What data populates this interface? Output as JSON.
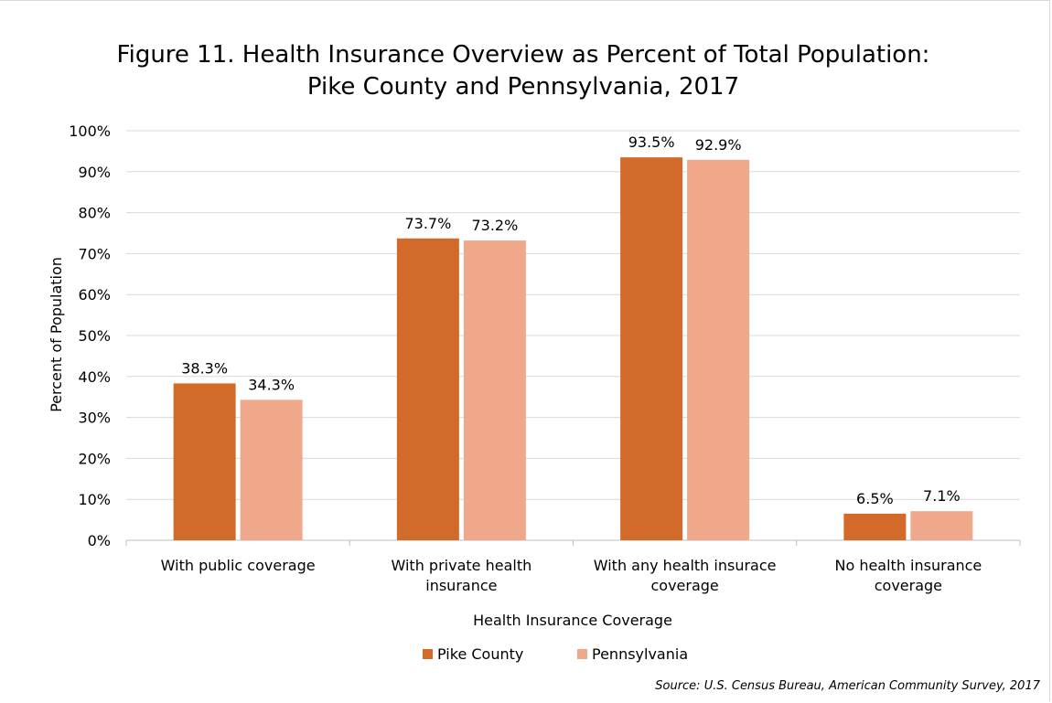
{
  "chart_data": {
    "type": "bar",
    "title": "Figure 11. Health Insurance Overview as Percent of Total Population:",
    "subtitle": "Pike County and Pennsylvania, 2017",
    "xlabel": "Health Insurance Coverage",
    "ylabel": "Percent of Population",
    "ylim": [
      0,
      100
    ],
    "y_ticks": [
      "0%",
      "10%",
      "20%",
      "30%",
      "40%",
      "50%",
      "60%",
      "70%",
      "80%",
      "90%",
      "100%"
    ],
    "grid": true,
    "legend_position": "bottom",
    "categories": [
      [
        "With public coverage"
      ],
      [
        "With private health",
        "insurance"
      ],
      [
        "With any health insurace",
        "coverage"
      ],
      [
        "No health insurance",
        "coverage"
      ]
    ],
    "series": [
      {
        "name": "Pike County",
        "color": "#D26B29",
        "values": [
          38.3,
          73.7,
          93.5,
          6.5
        ],
        "labels": [
          "38.3%",
          "73.7%",
          "93.5%",
          "6.5%"
        ]
      },
      {
        "name": "Pennsylvania",
        "color": "#F0A88A",
        "values": [
          34.3,
          73.2,
          92.9,
          7.1
        ],
        "labels": [
          "34.3%",
          "73.2%",
          "92.9%",
          "7.1%"
        ]
      }
    ],
    "source": "Source: U.S. Census Bureau, American Community Survey, 2017"
  }
}
